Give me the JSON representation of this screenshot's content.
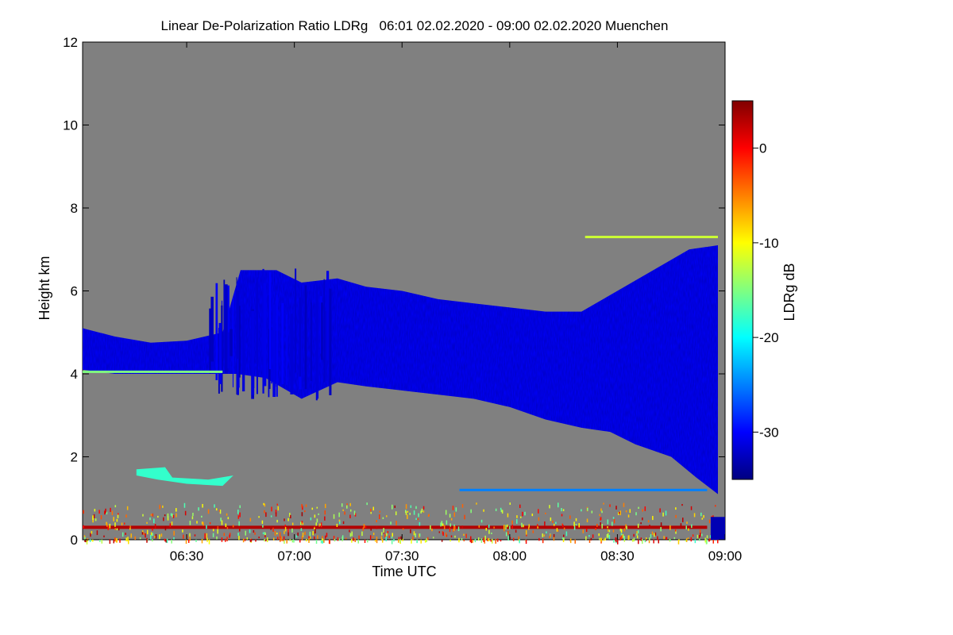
{
  "chart_data": {
    "type": "heatmap",
    "title": "Linear De-Polarization Ratio LDRg   06:01 02.02.2020 - 09:00 02.02.2020 Muenchen",
    "xlabel": "Time UTC",
    "ylabel": "Height km",
    "x_ticks": [
      "06:30",
      "07:00",
      "07:30",
      "08:00",
      "08:30",
      "09:00"
    ],
    "x_tick_minutes": [
      30,
      60,
      90,
      120,
      150,
      180
    ],
    "xlim_minutes": [
      1,
      180
    ],
    "y_ticks": [
      "0",
      "2",
      "4",
      "6",
      "8",
      "10",
      "12"
    ],
    "y_tick_values": [
      0,
      2,
      4,
      6,
      8,
      10,
      12
    ],
    "ylim": [
      0,
      12
    ],
    "colorbar": {
      "label": "LDRg dB",
      "ticks": [
        "0",
        "-10",
        "-20",
        "-30"
      ],
      "tick_values": [
        0,
        -10,
        -20,
        -30
      ],
      "range": [
        -35,
        5
      ],
      "colormap": [
        "#000080",
        "#0000ff",
        "#0080ff",
        "#00ffff",
        "#80ff80",
        "#ffff00",
        "#ff8000",
        "#ff0000",
        "#800000"
      ]
    },
    "no_data_color": "#808080",
    "features": [
      {
        "name": "cloud-layer",
        "typical_ldr_db": -30,
        "points": [
          [
            1,
            5.1
          ],
          [
            10,
            4.9
          ],
          [
            20,
            4.75
          ],
          [
            30,
            4.8
          ],
          [
            40,
            5.0
          ],
          [
            45,
            6.5
          ],
          [
            55,
            6.5
          ],
          [
            62,
            6.2
          ],
          [
            72,
            6.3
          ],
          [
            80,
            6.1
          ],
          [
            90,
            6.0
          ],
          [
            100,
            5.8
          ],
          [
            110,
            5.7
          ],
          [
            120,
            5.6
          ],
          [
            130,
            5.5
          ],
          [
            140,
            5.5
          ],
          [
            150,
            6.0
          ],
          [
            160,
            6.5
          ],
          [
            170,
            7.0
          ],
          [
            178,
            7.1
          ],
          [
            178,
            1.1
          ],
          [
            172,
            1.5
          ],
          [
            165,
            2.0
          ],
          [
            155,
            2.3
          ],
          [
            148,
            2.6
          ],
          [
            140,
            2.7
          ],
          [
            130,
            2.9
          ],
          [
            120,
            3.2
          ],
          [
            110,
            3.4
          ],
          [
            100,
            3.5
          ],
          [
            90,
            3.6
          ],
          [
            80,
            3.7
          ],
          [
            72,
            3.8
          ],
          [
            62,
            3.4
          ],
          [
            52,
            3.9
          ],
          [
            44,
            4.0
          ],
          [
            30,
            4.0
          ],
          [
            20,
            4.0
          ],
          [
            10,
            4.0
          ],
          [
            1,
            4.1
          ]
        ]
      },
      {
        "name": "fall-streaks",
        "typical_ldr_db": -32,
        "x_range": [
          36,
          70
        ],
        "y_range": [
          3.3,
          6.6
        ]
      },
      {
        "name": "cloud-base-edge",
        "typical_ldr_db": -15,
        "height_km": 4.05,
        "x_range": [
          1,
          40
        ]
      },
      {
        "name": "low-cloud-patch",
        "typical_ldr_db": -18,
        "x_range": [
          16,
          43
        ],
        "y_range": [
          1.3,
          1.7
        ]
      },
      {
        "name": "thin-layer-7km",
        "typical_ldr_db": -12,
        "height_km": 7.3,
        "x_range": [
          141,
          178
        ]
      },
      {
        "name": "thin-layer-1.2km",
        "typical_ldr_db": -25,
        "height_km": 1.2,
        "x_range": [
          106,
          175
        ]
      },
      {
        "name": "near-ground-layer",
        "typical_ldr_db": 3,
        "height_km": 0.3,
        "x_range": [
          1,
          175
        ]
      },
      {
        "name": "ground-noise",
        "typical_ldr_db": -8,
        "y_range": [
          0,
          0.9
        ],
        "x_range": [
          1,
          178
        ]
      }
    ]
  }
}
